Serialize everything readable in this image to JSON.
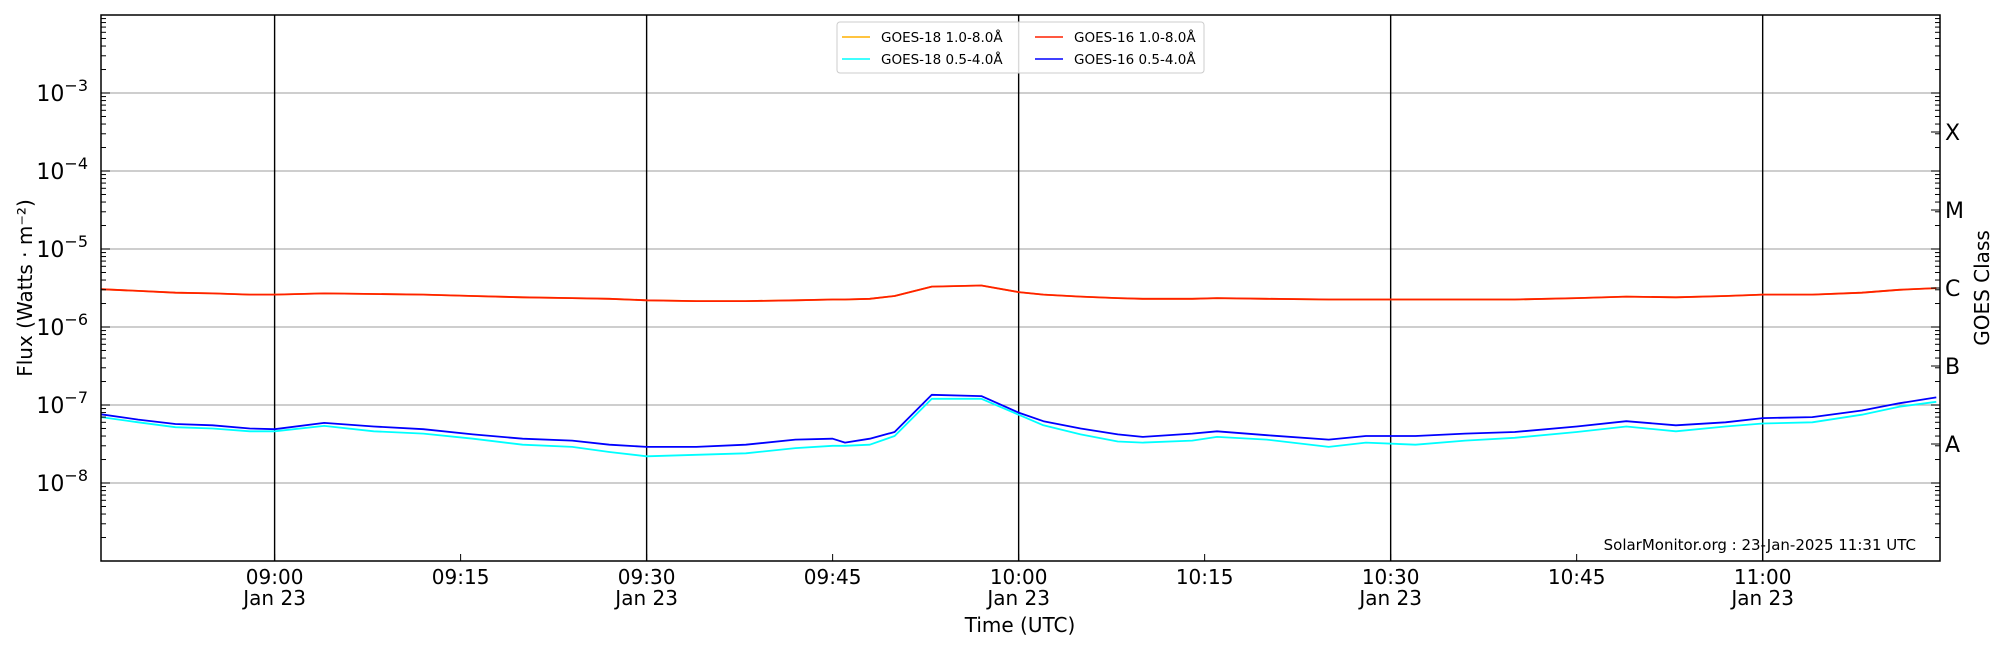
{
  "chart_data": {
    "type": "line",
    "title": "",
    "xlabel": "Time (UTC)",
    "ylabel": "Flux (Watts · m⁻²)",
    "y2label": "GOES Class",
    "yscale": "log",
    "ylim": [
      1e-09,
      0.01
    ],
    "xlim": [
      "08:46",
      "11:14"
    ],
    "grid": "horizontal at decades",
    "legend_placement": "top-center",
    "yticks": [
      {
        "exp": -3,
        "label": "10",
        "sup": "−3"
      },
      {
        "exp": -4,
        "label": "10",
        "sup": "−4"
      },
      {
        "exp": -5,
        "label": "10",
        "sup": "−5"
      },
      {
        "exp": -6,
        "label": "10",
        "sup": "−6"
      },
      {
        "exp": -7,
        "label": "10",
        "sup": "−7"
      },
      {
        "exp": -8,
        "label": "10",
        "sup": "−8"
      }
    ],
    "xticks": [
      {
        "t": "09:00",
        "label": "09:00",
        "date": "Jan 23"
      },
      {
        "t": "09:15",
        "label": "09:15",
        "date": ""
      },
      {
        "t": "09:30",
        "label": "09:30",
        "date": "Jan 23"
      },
      {
        "t": "09:45",
        "label": "09:45",
        "date": ""
      },
      {
        "t": "10:00",
        "label": "10:00",
        "date": "Jan 23"
      },
      {
        "t": "10:15",
        "label": "10:15",
        "date": ""
      },
      {
        "t": "10:30",
        "label": "10:30",
        "date": "Jan 23"
      },
      {
        "t": "10:45",
        "label": "10:45",
        "date": ""
      },
      {
        "t": "11:00",
        "label": "11:00",
        "date": "Jan 23"
      }
    ],
    "vlines": [
      "09:00",
      "09:30",
      "10:00",
      "10:30",
      "11:00"
    ],
    "goes_classes": [
      {
        "label": "A",
        "exp": -7.5
      },
      {
        "label": "B",
        "exp": -6.5
      },
      {
        "label": "C",
        "exp": -5.5
      },
      {
        "label": "M",
        "exp": -4.5
      },
      {
        "label": "X",
        "exp": -3.5
      }
    ],
    "annotation": "SolarMonitor.org : 23-Jan-2025 11:31 UTC",
    "x": [
      "08:46",
      "08:49",
      "08:52",
      "08:55",
      "08:58",
      "09:00",
      "09:04",
      "09:08",
      "09:12",
      "09:16",
      "09:20",
      "09:24",
      "09:27",
      "09:30",
      "09:34",
      "09:38",
      "09:42",
      "09:45",
      "09:46",
      "09:48",
      "09:50",
      "09:53",
      "09:57",
      "10:00",
      "10:02",
      "10:05",
      "10:08",
      "10:10",
      "10:14",
      "10:16",
      "10:20",
      "10:25",
      "10:28",
      "10:32",
      "10:36",
      "10:40",
      "10:45",
      "10:49",
      "10:53",
      "10:57",
      "11:00",
      "11:04",
      "11:08",
      "11:11",
      "11:14"
    ],
    "series": [
      {
        "name": "GOES-18 1.0-8.0Å",
        "color": "#ffb000",
        "values": [
          3.05e-06,
          2.9e-06,
          2.75e-06,
          2.7e-06,
          2.6e-06,
          2.6e-06,
          2.7e-06,
          2.65e-06,
          2.6e-06,
          2.5e-06,
          2.4e-06,
          2.35e-06,
          2.3e-06,
          2.2e-06,
          2.15e-06,
          2.15e-06,
          2.2e-06,
          2.25e-06,
          2.25e-06,
          2.3e-06,
          2.5e-06,
          3.3e-06,
          3.4e-06,
          2.8e-06,
          2.6e-06,
          2.45e-06,
          2.35e-06,
          2.3e-06,
          2.3e-06,
          2.35e-06,
          2.3e-06,
          2.25e-06,
          2.25e-06,
          2.25e-06,
          2.25e-06,
          2.25e-06,
          2.35e-06,
          2.45e-06,
          2.4e-06,
          2.5e-06,
          2.6e-06,
          2.6e-06,
          2.75e-06,
          3e-06,
          3.15e-06
        ]
      },
      {
        "name": "GOES-16 1.0-8.0Å",
        "color": "#ff2000",
        "values": [
          3.05e-06,
          2.9e-06,
          2.75e-06,
          2.7e-06,
          2.6e-06,
          2.6e-06,
          2.7e-06,
          2.65e-06,
          2.6e-06,
          2.5e-06,
          2.4e-06,
          2.35e-06,
          2.3e-06,
          2.2e-06,
          2.15e-06,
          2.15e-06,
          2.2e-06,
          2.25e-06,
          2.25e-06,
          2.3e-06,
          2.5e-06,
          3.3e-06,
          3.4e-06,
          2.8e-06,
          2.6e-06,
          2.45e-06,
          2.35e-06,
          2.3e-06,
          2.3e-06,
          2.35e-06,
          2.3e-06,
          2.25e-06,
          2.25e-06,
          2.25e-06,
          2.25e-06,
          2.25e-06,
          2.35e-06,
          2.45e-06,
          2.4e-06,
          2.5e-06,
          2.6e-06,
          2.6e-06,
          2.75e-06,
          3e-06,
          3.15e-06
        ]
      },
      {
        "name": "GOES-18 0.5-4.0Å",
        "color": "#00ffff",
        "values": [
          7e-08,
          6e-08,
          5.2e-08,
          5e-08,
          4.6e-08,
          4.6e-08,
          5.4e-08,
          4.6e-08,
          4.3e-08,
          3.7e-08,
          3.1e-08,
          2.9e-08,
          2.5e-08,
          2.2e-08,
          2.3e-08,
          2.4e-08,
          2.8e-08,
          3e-08,
          3e-08,
          3.1e-08,
          4e-08,
          1.2e-07,
          1.2e-07,
          7.5e-08,
          5.5e-08,
          4.2e-08,
          3.4e-08,
          3.3e-08,
          3.5e-08,
          3.9e-08,
          3.6e-08,
          2.9e-08,
          3.3e-08,
          3.1e-08,
          3.5e-08,
          3.8e-08,
          4.5e-08,
          5.3e-08,
          4.6e-08,
          5.3e-08,
          5.8e-08,
          6e-08,
          7.5e-08,
          9.5e-08,
          1.1e-07
        ]
      },
      {
        "name": "GOES-16 0.5-4.0Å",
        "color": "#0000ff",
        "values": [
          7.6e-08,
          6.5e-08,
          5.7e-08,
          5.5e-08,
          5e-08,
          4.9e-08,
          5.9e-08,
          5.3e-08,
          4.9e-08,
          4.2e-08,
          3.7e-08,
          3.5e-08,
          3.1e-08,
          2.9e-08,
          2.9e-08,
          3.1e-08,
          3.6e-08,
          3.7e-08,
          3.3e-08,
          3.7e-08,
          4.5e-08,
          1.35e-07,
          1.3e-07,
          8e-08,
          6.2e-08,
          5e-08,
          4.2e-08,
          3.9e-08,
          4.3e-08,
          4.6e-08,
          4.1e-08,
          3.6e-08,
          4e-08,
          4e-08,
          4.3e-08,
          4.5e-08,
          5.3e-08,
          6.2e-08,
          5.5e-08,
          6e-08,
          6.8e-08,
          7e-08,
          8.5e-08,
          1.05e-07,
          1.25e-07
        ]
      }
    ],
    "legend_order": [
      0,
      2,
      1,
      3
    ]
  }
}
